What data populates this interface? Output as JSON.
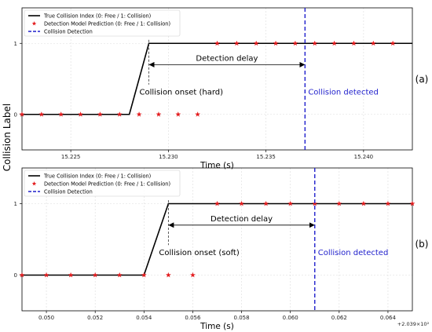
{
  "figure": {
    "ylabel_shared": "Collision Label"
  },
  "chart_data": [
    {
      "type": "line",
      "panel_label": "(a)",
      "xlabel": "Time (s)",
      "ylabel": "Collision Label",
      "x_offset_text": "",
      "xlim": [
        15.2225,
        15.2425
      ],
      "ylim": [
        -0.5,
        1.5
      ],
      "x_ticks": [
        15.225,
        15.23,
        15.235,
        15.24
      ],
      "x_tick_labels": [
        "15.225",
        "15.230",
        "15.235",
        "15.240"
      ],
      "y_ticks": [
        0,
        1
      ],
      "y_tick_labels": [
        "0",
        "1"
      ],
      "grid": true,
      "legend_position": "top-left",
      "legend": [
        {
          "label": "True Collision Index (0: Free / 1: Collision)",
          "style": "solid-line",
          "color": "#000000"
        },
        {
          "label": "Detection Model Prediction (0: Free / 1: Collision)",
          "style": "star-marker",
          "color": "#e31a1c"
        },
        {
          "label": "Collision Detection",
          "style": "dashed-line",
          "color": "#1f1fcc"
        }
      ],
      "series": [
        {
          "name": "True Collision Index (0: Free / 1: Collision)",
          "x": [
            15.2225,
            15.228,
            15.229,
            15.2425
          ],
          "y": [
            0,
            0,
            1,
            1
          ]
        },
        {
          "name": "Detection Model Prediction (0: Free / 1: Collision)",
          "x": [
            15.2225,
            15.2235,
            15.2245,
            15.2255,
            15.2265,
            15.2275,
            15.2285,
            15.2295,
            15.2305,
            15.2315,
            15.2325,
            15.2335,
            15.2345,
            15.2355,
            15.2365,
            15.2375,
            15.2385,
            15.2395,
            15.2405,
            15.2415
          ],
          "y": [
            0,
            0,
            0,
            0,
            0,
            0,
            0,
            0,
            0,
            0,
            1,
            1,
            1,
            1,
            1,
            1,
            1,
            1,
            1,
            1
          ]
        }
      ],
      "onset_x": 15.229,
      "detection_x": 15.237,
      "delay_arrow_y": 0.7,
      "annotations": {
        "onset": "Collision onset (hard)",
        "delay": "Detection delay",
        "detected": "Collision detected"
      }
    },
    {
      "type": "line",
      "panel_label": "(b)",
      "xlabel": "Time (s)",
      "ylabel": "Collision Label",
      "x_offset_text": "+2.039×10²",
      "xlim": [
        0.049,
        0.065
      ],
      "ylim": [
        -0.5,
        1.5
      ],
      "x_ticks": [
        0.05,
        0.052,
        0.054,
        0.056,
        0.058,
        0.06,
        0.062,
        0.064
      ],
      "x_tick_labels": [
        "0.050",
        "0.052",
        "0.054",
        "0.056",
        "0.058",
        "0.060",
        "0.062",
        "0.064"
      ],
      "y_ticks": [
        0,
        1
      ],
      "y_tick_labels": [
        "0",
        "1"
      ],
      "grid": true,
      "legend_position": "top-left",
      "legend": [
        {
          "label": "True Collision Index (0: Free / 1: Collision)",
          "style": "solid-line",
          "color": "#000000"
        },
        {
          "label": "Detection Model Prediction (0: Free / 1: Collision)",
          "style": "star-marker",
          "color": "#e31a1c"
        },
        {
          "label": "Collision Detection",
          "style": "dashed-line",
          "color": "#1f1fcc"
        }
      ],
      "series": [
        {
          "name": "True Collision Index (0: Free / 1: Collision)",
          "x": [
            0.049,
            0.054,
            0.055,
            0.065
          ],
          "y": [
            0,
            0,
            1,
            1
          ]
        },
        {
          "name": "Detection Model Prediction (0: Free / 1: Collision)",
          "x": [
            0.049,
            0.05,
            0.051,
            0.052,
            0.053,
            0.054,
            0.055,
            0.056,
            0.057,
            0.058,
            0.059,
            0.06,
            0.061,
            0.062,
            0.063,
            0.064,
            0.065
          ],
          "y": [
            0,
            0,
            0,
            0,
            0,
            0,
            0,
            0,
            1,
            1,
            1,
            1,
            1,
            1,
            1,
            1,
            1
          ]
        }
      ],
      "onset_x": 0.055,
      "detection_x": 0.061,
      "delay_arrow_y": 0.7,
      "annotations": {
        "onset": "Collision onset (soft)",
        "delay": "Detection delay",
        "detected": "Collision detected"
      }
    }
  ]
}
